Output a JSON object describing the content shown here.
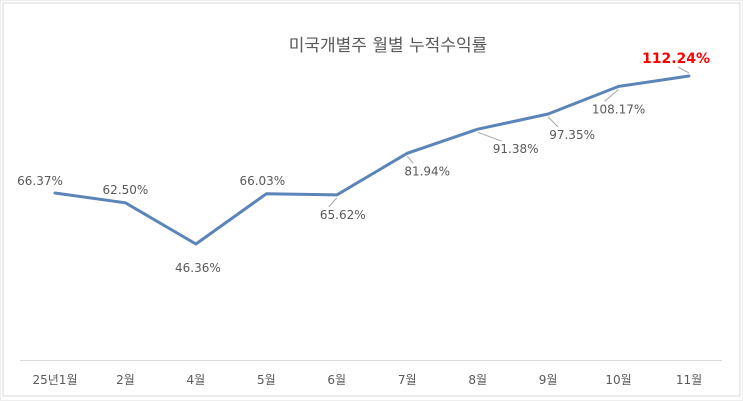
{
  "chart_data": {
    "type": "line",
    "title": "미국개별주 월별 누적수익률",
    "categories": [
      "25년1월",
      "2월",
      "4월",
      "5월",
      "6월",
      "7월",
      "8월",
      "9월",
      "10월",
      "11월"
    ],
    "series": [
      {
        "values": [
          66.37,
          62.5,
          46.36,
          66.03,
          65.62,
          81.94,
          91.38,
          97.35,
          108.17,
          112.24
        ],
        "labels": [
          "66.37%",
          "62.50%",
          "46.36%",
          "66.03%",
          "65.62%",
          "81.94%",
          "91.38%",
          "97.35%",
          "108.17%",
          "112.24%"
        ],
        "color": "#5b84b8"
      }
    ],
    "highlight_color": "#ff0000",
    "axis_color": "#d9d9d9",
    "leader_color": "#a6a6a6",
    "grid": false,
    "legend": "none"
  }
}
